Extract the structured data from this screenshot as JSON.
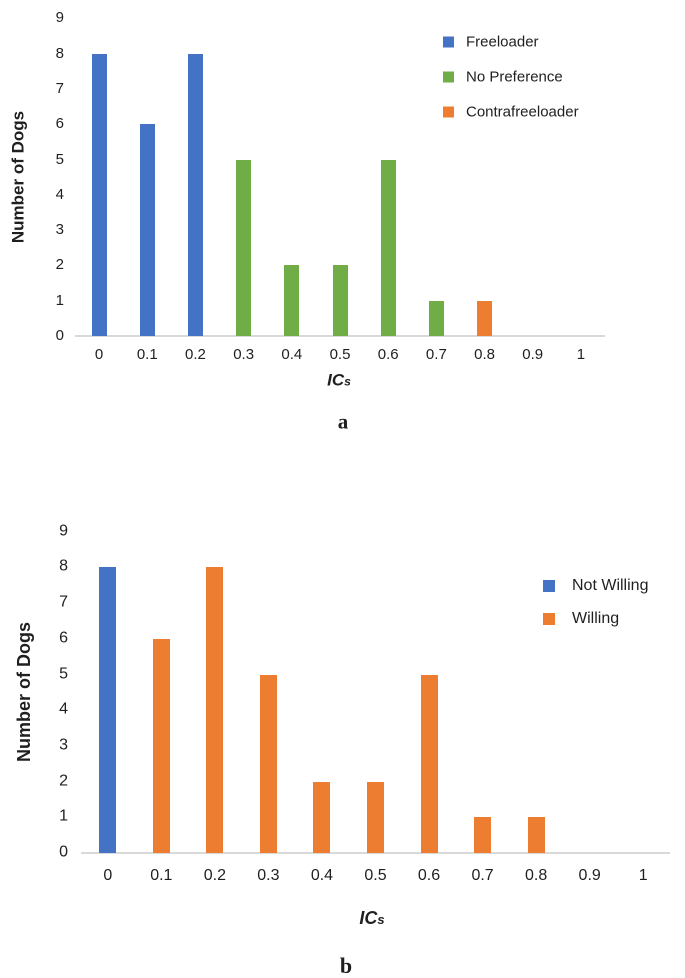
{
  "page": {
    "background": "#ffffff",
    "text_color": "#1f1f1f",
    "axis_line_color": "#d9d9d9"
  },
  "chart_data": [
    {
      "type": "bar",
      "panel_label": "a",
      "ylabel": "Number of Dogs",
      "xlabel": "ICs",
      "xlabel_main": "IC",
      "xlabel_sub": "s",
      "categories": [
        "0",
        "0.1",
        "0.2",
        "0.3",
        "0.4",
        "0.5",
        "0.6",
        "0.7",
        "0.8",
        "0.9",
        "1"
      ],
      "series": [
        {
          "name": "Freeloader",
          "color": "#4472C4",
          "values": [
            8,
            6,
            8,
            0,
            0,
            0,
            0,
            0,
            0,
            0,
            0
          ]
        },
        {
          "name": "No Preference",
          "color": "#70AD47",
          "values": [
            0,
            0,
            0,
            5,
            2,
            2,
            5,
            1,
            0,
            0,
            0
          ]
        },
        {
          "name": "Contrafreeloader",
          "color": "#ED7D31",
          "values": [
            0,
            0,
            0,
            0,
            0,
            0,
            0,
            0,
            1,
            0,
            0
          ]
        }
      ],
      "ylim": [
        0,
        9
      ],
      "y_ticks": [
        0,
        1,
        2,
        3,
        4,
        5,
        6,
        7,
        8,
        9
      ],
      "grid": false,
      "legend_position": "top-right"
    },
    {
      "type": "bar",
      "panel_label": "b",
      "ylabel": "Number of Dogs",
      "xlabel": "ICs",
      "xlabel_main": "IC",
      "xlabel_sub": "s",
      "categories": [
        "0",
        "0.1",
        "0.2",
        "0.3",
        "0.4",
        "0.5",
        "0.6",
        "0.7",
        "0.8",
        "0.9",
        "1"
      ],
      "series": [
        {
          "name": "Not Willing",
          "color": "#4472C4",
          "values": [
            8,
            0,
            0,
            0,
            0,
            0,
            0,
            0,
            0,
            0,
            0
          ]
        },
        {
          "name": "Willing",
          "color": "#ED7D31",
          "values": [
            0,
            6,
            8,
            5,
            2,
            2,
            5,
            1,
            1,
            0,
            0
          ]
        }
      ],
      "ylim": [
        0,
        9
      ],
      "y_ticks": [
        0,
        1,
        2,
        3,
        4,
        5,
        6,
        7,
        8,
        9
      ],
      "grid": false,
      "legend_position": "top-right"
    }
  ]
}
